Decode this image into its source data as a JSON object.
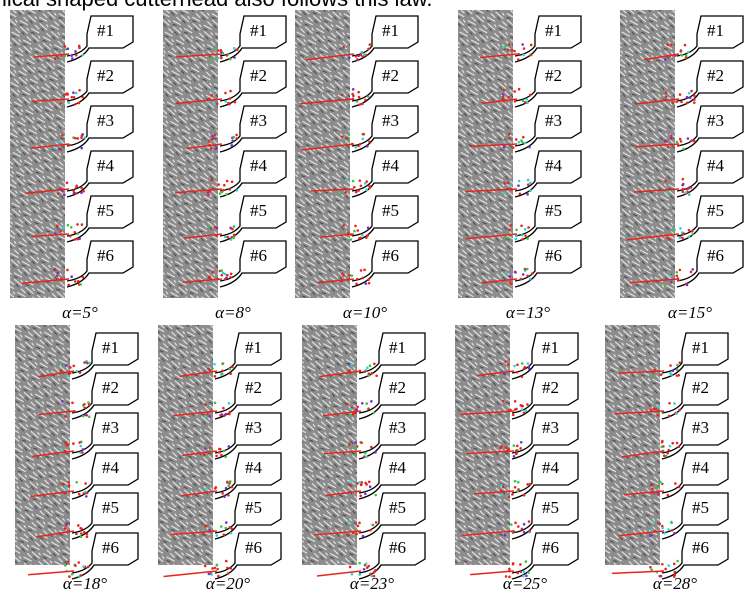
{
  "header": {
    "text": "lical shaped cutterhead also follows this law."
  },
  "panels": [
    {
      "caption": "α=5°",
      "labels": [
        "#1",
        "#2",
        "#3",
        "#4",
        "#5",
        "#6"
      ]
    },
    {
      "caption": "α=8°",
      "labels": [
        "#1",
        "#2",
        "#3",
        "#4",
        "#5",
        "#6"
      ]
    },
    {
      "caption": "α=10°",
      "labels": [
        "#1",
        "#2",
        "#3",
        "#4",
        "#5",
        "#6"
      ]
    },
    {
      "caption": "α=13°",
      "labels": [
        "#1",
        "#2",
        "#3",
        "#4",
        "#5",
        "#6"
      ]
    },
    {
      "caption": "α=15°",
      "labels": [
        "#1",
        "#2",
        "#3",
        "#4",
        "#5",
        "#6"
      ]
    },
    {
      "caption": "α=18°",
      "labels": [
        "#1",
        "#2",
        "#3",
        "#4",
        "#5",
        "#6"
      ]
    },
    {
      "caption": "α=20°",
      "labels": [
        "#1",
        "#2",
        "#3",
        "#4",
        "#5",
        "#6"
      ]
    },
    {
      "caption": "α=23°",
      "labels": [
        "#1",
        "#2",
        "#3",
        "#4",
        "#5",
        "#6"
      ]
    },
    {
      "caption": "α=25°",
      "labels": [
        "#1",
        "#2",
        "#3",
        "#4",
        "#5",
        "#6"
      ]
    },
    {
      "caption": "α=28°",
      "labels": [
        "#1",
        "#2",
        "#3",
        "#4",
        "#5",
        "#6"
      ]
    }
  ]
}
